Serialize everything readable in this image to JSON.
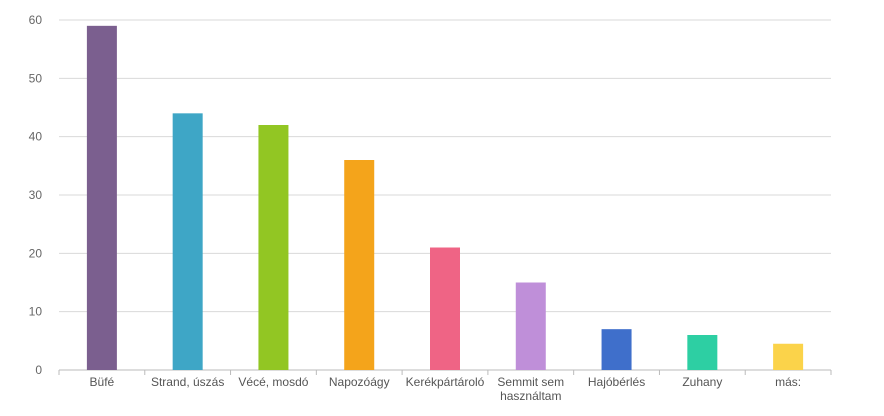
{
  "chart_data": {
    "type": "bar",
    "categories": [
      [
        "Büfé"
      ],
      [
        "Strand, úszás"
      ],
      [
        "Vécé, mosdó"
      ],
      [
        "Napozóágy"
      ],
      [
        "Kerékpártároló"
      ],
      [
        "Semmit sem",
        "használtam"
      ],
      [
        "Hajóbérlés"
      ],
      [
        "Zuhany"
      ],
      [
        "más:"
      ]
    ],
    "values": [
      59,
      44,
      42,
      36,
      21,
      15,
      7,
      6,
      4.5
    ],
    "colors": [
      "#7b5f8f",
      "#3ea6c6",
      "#92c623",
      "#f4a41b",
      "#ef6485",
      "#bf8fd9",
      "#3f6fcb",
      "#2dcfa3",
      "#fbd34a"
    ],
    "title": "",
    "xlabel": "",
    "ylabel": "",
    "ylim": [
      0,
      60
    ],
    "yticks": [
      0,
      10,
      20,
      30,
      40,
      50,
      60
    ],
    "grid": true,
    "legend": "none"
  }
}
